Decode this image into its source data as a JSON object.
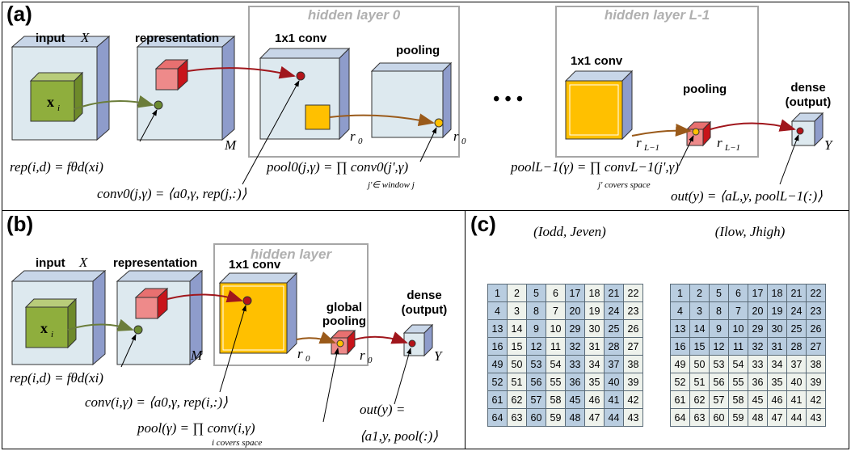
{
  "panel_a": {
    "label": "(a)",
    "input_label": "input",
    "input_var": "X",
    "repr_label": "representation",
    "conv_label": "1x1 conv",
    "pool_label": "pooling",
    "hidden0": "hidden layer 0",
    "hiddenL": "hidden layer L-1",
    "conv2_label": "1x1 conv",
    "pool2_label": "pooling",
    "dense_label1": "dense",
    "dense_label2": "(output)",
    "xi": "x",
    "xi_sub": "i",
    "M": "M",
    "r0a": "r",
    "r0b": "r",
    "rL1a": "r",
    "rL1b": "r",
    "Y": "Y",
    "dots": "• • •",
    "rep_formula": "rep(i,d) = fθd(xi)",
    "conv_formula": "conv0(j,γ) = ⟨a0,γ, rep(j,:)⟩",
    "pool_formula": "pool0(j,γ) = ∏ conv0(j',γ)",
    "pool_sub": "j'∈ window j",
    "poolL_formula": "poolL−1(γ) = ∏ convL−1(j',γ)",
    "poolL_sub": "j' covers space",
    "out_formula": "out(y) = ⟨aL,y, poolL−1(:)⟩"
  },
  "panel_b": {
    "label": "(b)",
    "input_label": "input",
    "input_var": "X",
    "repr_label": "representation",
    "hidden": "hidden layer",
    "conv_label": "1x1 conv",
    "gpool1": "global",
    "gpool2": "pooling",
    "dense_label1": "dense",
    "dense_label2": "(output)",
    "xi": "x",
    "xi_sub": "i",
    "M": "M",
    "r0a": "r",
    "r0b": "r",
    "Y": "Y",
    "rep_formula": "rep(i,d) = fθd(xi)",
    "conv_formula": "conv(i,γ) = ⟨a0,γ, rep(i,:)⟩",
    "pool_formula": "pool(γ) = ∏ conv(i,γ)",
    "pool_sub": "i covers space",
    "out_formula1": "out(y) =",
    "out_formula2": "⟨a1,y, pool(:)⟩"
  },
  "panel_c": {
    "label": "(c)",
    "title_left": "(Iodd, Jeven)",
    "title_right": "(Ilow, Jhigh)",
    "grid_left": [
      [
        1,
        2,
        5,
        6,
        17,
        18,
        21,
        22
      ],
      [
        4,
        3,
        8,
        7,
        20,
        19,
        24,
        23
      ],
      [
        13,
        14,
        9,
        10,
        29,
        30,
        25,
        26
      ],
      [
        16,
        15,
        12,
        11,
        32,
        31,
        28,
        27
      ],
      [
        49,
        50,
        53,
        54,
        33,
        34,
        37,
        38
      ],
      [
        52,
        51,
        56,
        55,
        36,
        35,
        40,
        39
      ],
      [
        61,
        62,
        57,
        58,
        45,
        46,
        41,
        42
      ],
      [
        64,
        63,
        60,
        59,
        48,
        47,
        44,
        43
      ]
    ],
    "grid_right": [
      [
        1,
        2,
        5,
        6,
        17,
        18,
        21,
        22
      ],
      [
        4,
        3,
        8,
        7,
        20,
        19,
        24,
        23
      ],
      [
        13,
        14,
        9,
        10,
        29,
        30,
        25,
        26
      ],
      [
        16,
        15,
        12,
        11,
        32,
        31,
        28,
        27
      ],
      [
        49,
        50,
        53,
        54,
        33,
        34,
        37,
        38
      ],
      [
        52,
        51,
        56,
        55,
        36,
        35,
        40,
        39
      ],
      [
        61,
        62,
        57,
        58,
        45,
        46,
        41,
        42
      ],
      [
        64,
        63,
        60,
        59,
        48,
        47,
        44,
        43
      ]
    ]
  },
  "colors": {
    "cube_front": "#dde9ef",
    "cube_side": "#8e9ccb",
    "green": "#8fae3d",
    "red": "#d9262a",
    "orange": "#ffc000",
    "blue_cell": "#b9cde0",
    "arrow": "#a0161c"
  }
}
